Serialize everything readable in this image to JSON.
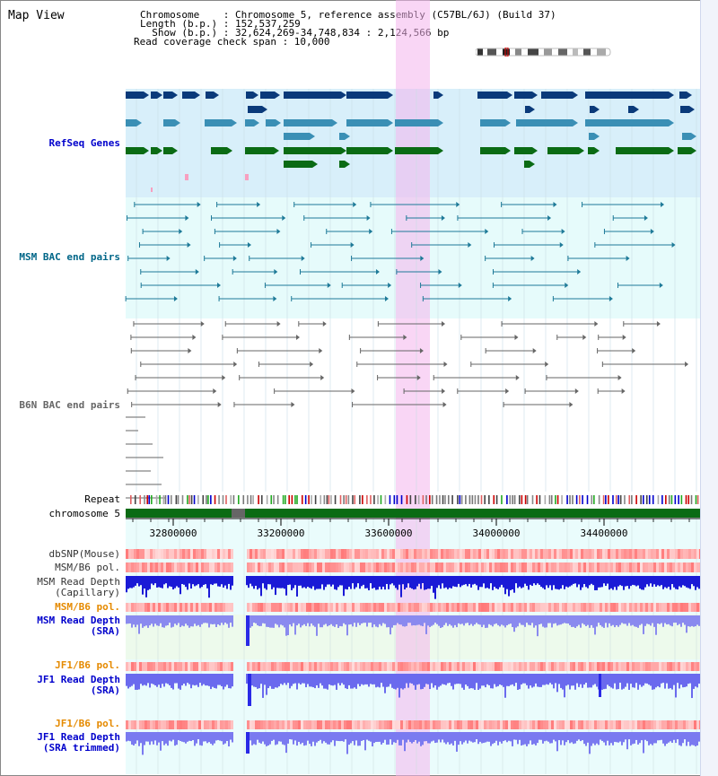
{
  "title": "Map View",
  "header": {
    "chromosome_line": "Chromosome    : Chromosome 5, reference assembly (C57BL/6J) (Build 37)",
    "length_line": "Length (b.p.) : 152,537,259",
    "show_line": "  Show (b.p.) : 32,624,269-34,748,834 : 2,124,566 bp",
    "coverage_line": "Read coverage check span : 10,000"
  },
  "tracks": {
    "refseq": "RefSeq Genes",
    "msm_bac": "MSM BAC end pairs",
    "b6n_bac": "B6N BAC end pairs",
    "repeat": "Repeat",
    "chromosome": "chromosome 5",
    "dbsnp": "dbSNP(Mouse)",
    "msm_b6_pol": "MSM/B6 pol.",
    "msm_read_depth_cap_1": "MSM Read Depth",
    "msm_read_depth_cap_2": "(Capillary)",
    "msm_b6_pol_2": "MSM/B6 pol.",
    "msm_read_depth_sra_1": "MSM Read Depth",
    "msm_read_depth_sra_2": "(SRA)",
    "jf1_b6_pol": "JF1/B6 pol.",
    "jf1_read_depth_sra_1": "JF1 Read Depth",
    "jf1_read_depth_sra_2": "(SRA)",
    "jf1_b6_pol_2": "JF1/B6 pol.",
    "jf1_read_depth_trim_1": "JF1 Read Depth",
    "jf1_read_depth_trim_2": "(SRA trimmed)"
  },
  "axis": {
    "ticks": [
      "32800000",
      "33200000",
      "33600000",
      "34000000",
      "34400000"
    ]
  },
  "colors": {
    "refseq_label": "#0000cc",
    "msm_bac_label": "#006688",
    "b6n_label": "#666666",
    "dark_blue_gene": "#0a3a7a",
    "teal_gene": "#3a8fb5",
    "green_gene": "#0a6b14",
    "highlight": "#f4b4ec",
    "pol_orange": "#e58a00",
    "read_depth_blue": "#0000cc"
  }
}
